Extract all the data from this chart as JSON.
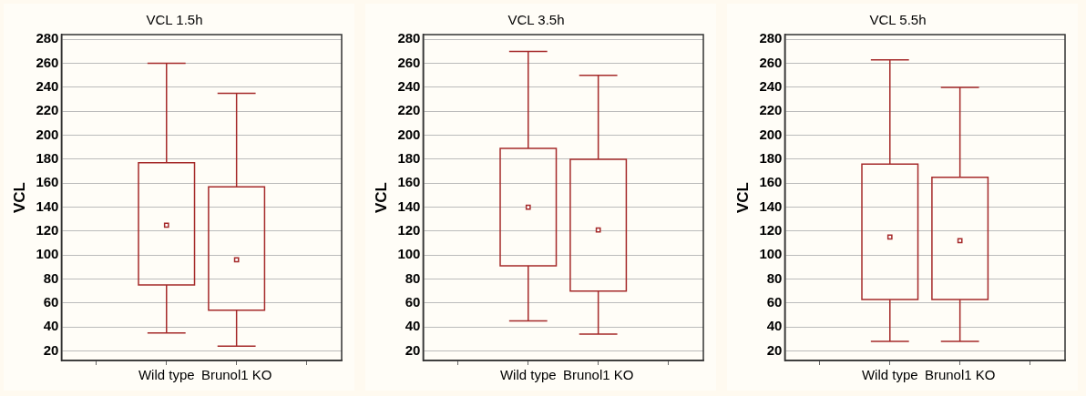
{
  "chart_data": [
    {
      "type": "box",
      "title": "VCL 1.5h",
      "ylabel": "VCL",
      "categories": [
        "Wild type",
        "Brunol1 KO"
      ],
      "ylim": [
        12,
        284
      ],
      "yticks": [
        20,
        40,
        60,
        80,
        100,
        120,
        140,
        160,
        180,
        200,
        220,
        240,
        260,
        280
      ],
      "grid": "y",
      "marker": "square",
      "legend": false,
      "series": [
        {
          "color": "#a52a2a",
          "boxes": [
            {
              "low": 35,
              "q1": 75,
              "median": 125,
              "q3": 177,
              "high": 260
            },
            {
              "low": 24,
              "q1": 54,
              "median": 96,
              "q3": 157,
              "high": 235
            }
          ]
        }
      ]
    },
    {
      "type": "box",
      "title": "VCL 3.5h",
      "ylabel": "VCL",
      "categories": [
        "Wild type",
        "Brunol1 KO"
      ],
      "ylim": [
        12,
        284
      ],
      "yticks": [
        20,
        40,
        60,
        80,
        100,
        120,
        140,
        160,
        180,
        200,
        220,
        240,
        260,
        280
      ],
      "grid": "y",
      "marker": "square",
      "legend": false,
      "series": [
        {
          "color": "#a52a2a",
          "boxes": [
            {
              "low": 45,
              "q1": 91,
              "median": 140,
              "q3": 189,
              "high": 270
            },
            {
              "low": 34,
              "q1": 70,
              "median": 121,
              "q3": 180,
              "high": 250
            }
          ]
        }
      ]
    },
    {
      "type": "box",
      "title": "VCL 5.5h",
      "ylabel": "VCL",
      "categories": [
        "Wild type",
        "Brunol1 KO"
      ],
      "ylim": [
        12,
        284
      ],
      "yticks": [
        20,
        40,
        60,
        80,
        100,
        120,
        140,
        160,
        180,
        200,
        220,
        240,
        260,
        280
      ],
      "grid": "y",
      "marker": "square",
      "legend": false,
      "series": [
        {
          "color": "#a52a2a",
          "boxes": [
            {
              "low": 28,
              "q1": 63,
              "median": 115,
              "q3": 176,
              "high": 263
            },
            {
              "low": 28,
              "q1": 63,
              "median": 112,
              "q3": 165,
              "high": 240
            }
          ]
        }
      ]
    }
  ]
}
